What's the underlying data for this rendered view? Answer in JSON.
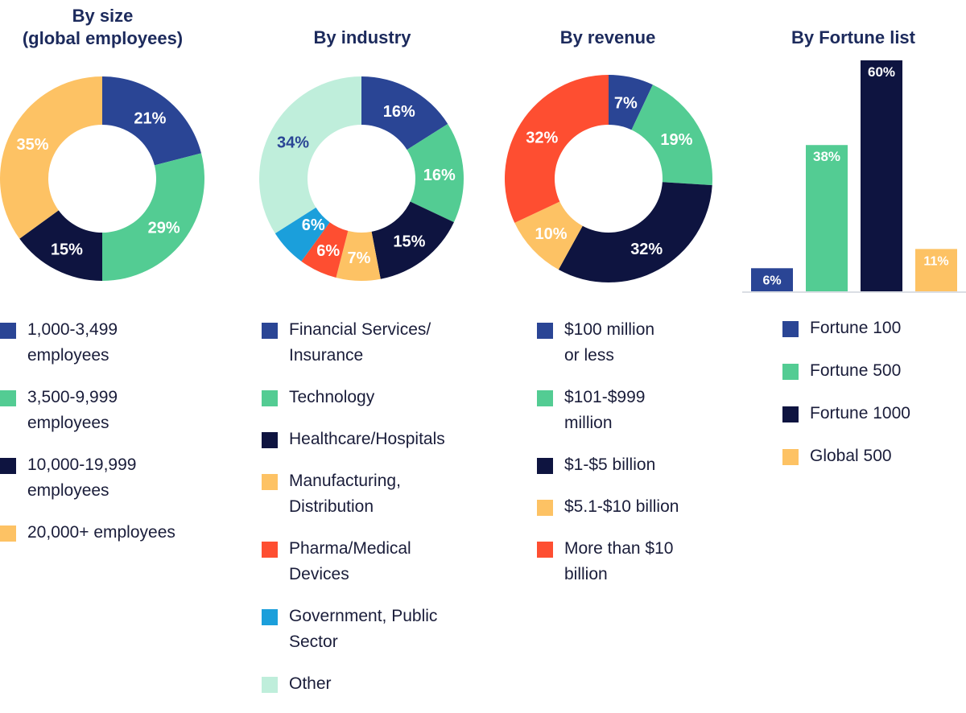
{
  "colors": {
    "blue": "#2a4595",
    "green": "#53cc93",
    "navy": "#0e1440",
    "yellow": "#fdc264",
    "red": "#fe4e31",
    "cyan": "#1b9fdb",
    "mint": "#bfeedb"
  },
  "chart_data": [
    {
      "type": "pie",
      "id": "size",
      "title": "By size\n(global employees)",
      "categories": [
        "1,000-3,499\nemployees",
        "3,500-9,999\nemployees",
        "10,000-19,999\nemployees",
        "20,000+ employees"
      ],
      "values": [
        21,
        29,
        15,
        35
      ],
      "labels": [
        "21%",
        "29%",
        "15%",
        "35%"
      ],
      "colors": [
        "#2a4595",
        "#53cc93",
        "#0e1440",
        "#fdc264"
      ]
    },
    {
      "type": "pie",
      "id": "industry",
      "title": "By industry",
      "categories": [
        "Financial Services/\nInsurance",
        "Technology",
        "Healthcare/Hospitals",
        "Manufacturing,\nDistribution",
        "Pharma/Medical\nDevices",
        "Government, Public\nSector",
        "Other"
      ],
      "values": [
        16,
        16,
        15,
        7,
        6,
        6,
        34
      ],
      "labels": [
        "16%",
        "16%",
        "15%",
        "7%",
        "6%",
        "6%",
        "34%"
      ],
      "colors": [
        "#2a4595",
        "#53cc93",
        "#0e1440",
        "#fdc264",
        "#fe4e31",
        "#1b9fdb",
        "#bfeedb"
      ]
    },
    {
      "type": "pie",
      "id": "revenue",
      "title": "By revenue",
      "categories": [
        "$100 million\nor less",
        "$101-$999\nmillion",
        "$1-$5 billion",
        "$5.1-$10 billion",
        "More than $10\nbillion"
      ],
      "values": [
        7,
        19,
        32,
        10,
        32
      ],
      "labels": [
        "7%",
        "19%",
        "32%",
        "10%",
        "32%"
      ],
      "colors": [
        "#2a4595",
        "#53cc93",
        "#0e1440",
        "#fdc264",
        "#fe4e31"
      ]
    },
    {
      "type": "bar",
      "id": "fortune",
      "title": "By Fortune list",
      "categories": [
        "Fortune 100",
        "Fortune 500",
        "Fortune 1000",
        "Global 500"
      ],
      "values": [
        6,
        38,
        60,
        11
      ],
      "labels": [
        "6%",
        "38%",
        "60%",
        "11%"
      ],
      "colors": [
        "#2a4595",
        "#53cc93",
        "#0e1440",
        "#fdc264"
      ],
      "ylim": [
        0,
        60
      ]
    }
  ]
}
